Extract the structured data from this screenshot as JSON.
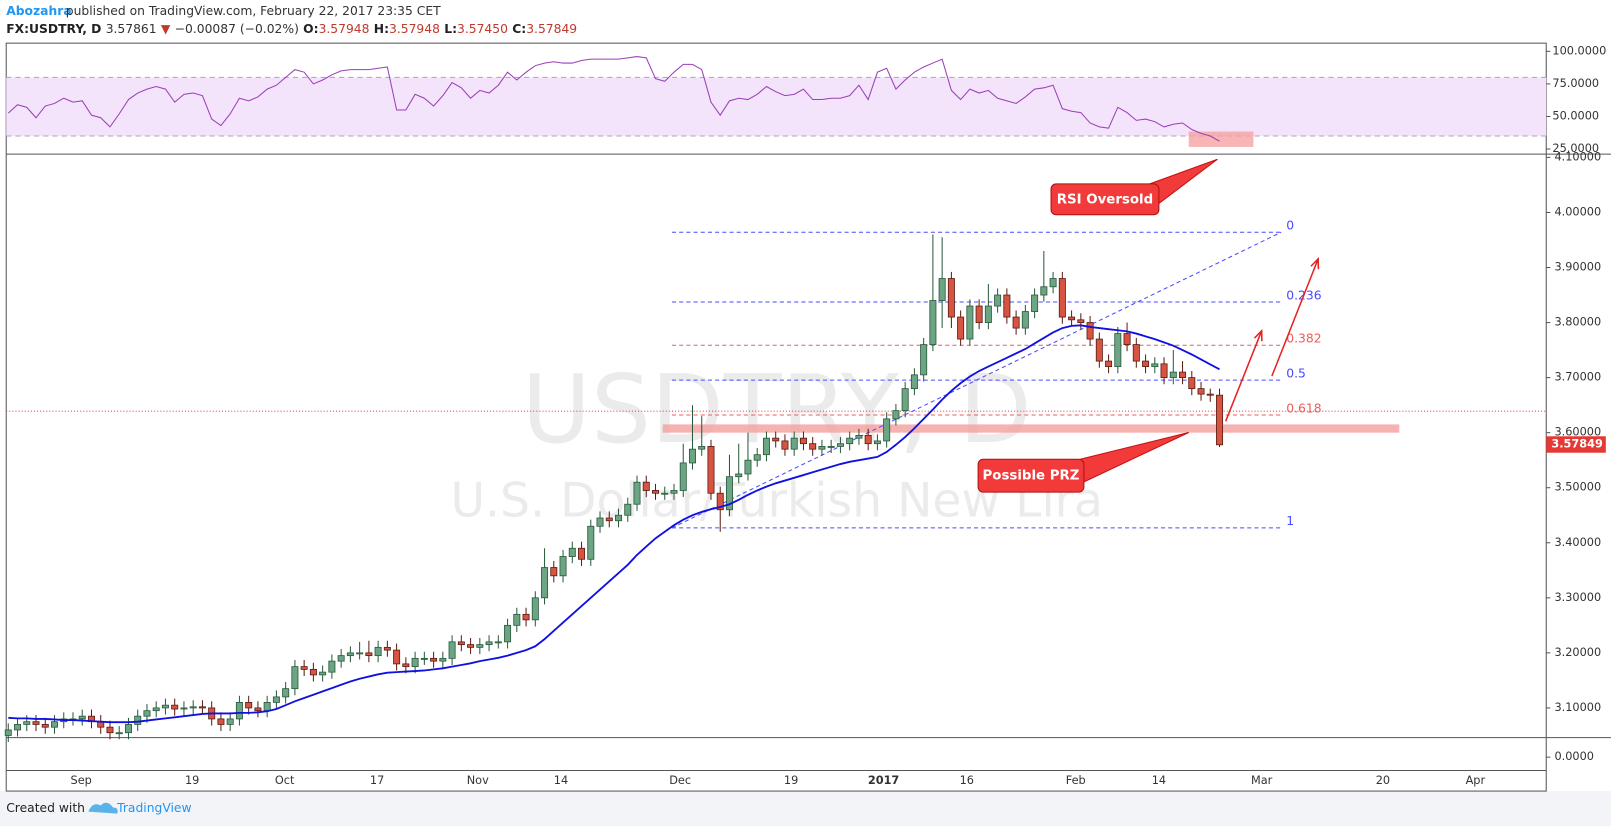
{
  "chart_data": {
    "type": "candlestick",
    "header": {
      "author": "Abozahra",
      "published": "published on TradingView.com, February 22, 2017 23:35 CET",
      "symbol": "FX:USDTRY, D",
      "price": "3.57861",
      "arrow": "▼",
      "change": "−0.00087 (−0.02%)",
      "o_label": "O:",
      "o": "3.57948",
      "h_label": "H:",
      "h": "3.57948",
      "l_label": "L:",
      "l": "3.57450",
      "c_label": "C:",
      "c": "3.57849"
    },
    "watermark": "USDTRY, D",
    "watermark_subtitle": "U.S. Dollar/Turkish New Lira",
    "up_color": "#6ba583",
    "down_color": "#d75442",
    "open": [
      3.05,
      3.06,
      3.07,
      3.075,
      3.07,
      3.065,
      3.075,
      3.08,
      3.08,
      3.085,
      3.075,
      3.065,
      3.055,
      3.055,
      3.07,
      3.085,
      3.095,
      3.1,
      3.105,
      3.098,
      3.1,
      3.102,
      3.1,
      3.08,
      3.07,
      3.08,
      3.11,
      3.1,
      3.095,
      3.11,
      3.12,
      3.135,
      3.175,
      3.17,
      3.16,
      3.165,
      3.185,
      3.195,
      3.2,
      3.2,
      3.195,
      3.21,
      3.205,
      3.18,
      3.175,
      3.19,
      3.19,
      3.185,
      3.19,
      3.22,
      3.215,
      3.21,
      3.215,
      3.22,
      3.22,
      3.25,
      3.27,
      3.26,
      3.3,
      3.355,
      3.34,
      3.375,
      3.39,
      3.37,
      3.43,
      3.445,
      3.44,
      3.45,
      3.47,
      3.51,
      3.495,
      3.49,
      3.49,
      3.495,
      3.545,
      3.57,
      3.575,
      3.49,
      3.46,
      3.52,
      3.525,
      3.55,
      3.56,
      3.59,
      3.585,
      3.57,
      3.59,
      3.58,
      3.57,
      3.575,
      3.575,
      3.58,
      3.59,
      3.595,
      3.58,
      3.585,
      3.625,
      3.64,
      3.68,
      3.705,
      3.76,
      3.84,
      3.88,
      3.81,
      3.77,
      3.83,
      3.8,
      3.83,
      3.85,
      3.81,
      3.79,
      3.82,
      3.85,
      3.865,
      3.88,
      3.81,
      3.805,
      3.8,
      3.77,
      3.73,
      3.72,
      3.78,
      3.76,
      3.73,
      3.72,
      3.725,
      3.7,
      3.71,
      3.7,
      3.68,
      3.67,
      3.668
    ],
    "high": [
      3.072,
      3.082,
      3.087,
      3.087,
      3.082,
      3.087,
      3.092,
      3.092,
      3.097,
      3.097,
      3.087,
      3.077,
      3.067,
      3.082,
      3.097,
      3.107,
      3.112,
      3.117,
      3.117,
      3.112,
      3.114,
      3.114,
      3.112,
      3.092,
      3.092,
      3.122,
      3.122,
      3.112,
      3.122,
      3.132,
      3.147,
      3.187,
      3.187,
      3.182,
      3.177,
      3.197,
      3.207,
      3.212,
      3.22,
      3.222,
      3.222,
      3.222,
      3.217,
      3.192,
      3.202,
      3.202,
      3.202,
      3.202,
      3.232,
      3.232,
      3.227,
      3.227,
      3.232,
      3.232,
      3.262,
      3.282,
      3.282,
      3.312,
      3.39,
      3.367,
      3.387,
      3.402,
      3.402,
      3.442,
      3.457,
      3.457,
      3.462,
      3.482,
      3.522,
      3.522,
      3.507,
      3.502,
      3.507,
      3.58,
      3.65,
      3.63,
      3.587,
      3.502,
      3.56,
      3.58,
      3.6,
      3.572,
      3.602,
      3.602,
      3.597,
      3.602,
      3.602,
      3.592,
      3.587,
      3.587,
      3.592,
      3.602,
      3.607,
      3.607,
      3.597,
      3.637,
      3.652,
      3.692,
      3.717,
      3.772,
      3.96,
      3.955,
      3.892,
      3.822,
      3.842,
      3.842,
      3.87,
      3.862,
      3.862,
      3.822,
      3.832,
      3.862,
      3.93,
      3.892,
      3.892,
      3.822,
      3.817,
      3.812,
      3.782,
      3.742,
      3.792,
      3.8,
      3.772,
      3.742,
      3.737,
      3.737,
      3.75,
      3.73,
      3.712,
      3.692,
      3.68,
      3.68
    ],
    "low": [
      3.038,
      3.048,
      3.058,
      3.058,
      3.053,
      3.053,
      3.063,
      3.068,
      3.068,
      3.063,
      3.053,
      3.043,
      3.043,
      3.043,
      3.058,
      3.073,
      3.083,
      3.088,
      3.086,
      3.086,
      3.088,
      3.088,
      3.068,
      3.058,
      3.058,
      3.068,
      3.088,
      3.083,
      3.083,
      3.098,
      3.108,
      3.123,
      3.158,
      3.148,
      3.148,
      3.153,
      3.173,
      3.183,
      3.188,
      3.183,
      3.183,
      3.193,
      3.168,
      3.163,
      3.163,
      3.178,
      3.173,
      3.173,
      3.178,
      3.203,
      3.198,
      3.198,
      3.203,
      3.208,
      3.208,
      3.238,
      3.248,
      3.248,
      3.288,
      3.328,
      3.328,
      3.363,
      3.358,
      3.358,
      3.418,
      3.428,
      3.428,
      3.438,
      3.458,
      3.483,
      3.478,
      3.478,
      3.478,
      3.483,
      3.533,
      3.558,
      3.478,
      3.42,
      3.448,
      3.508,
      3.513,
      3.538,
      3.548,
      3.573,
      3.558,
      3.558,
      3.568,
      3.558,
      3.558,
      3.563,
      3.563,
      3.568,
      3.578,
      3.568,
      3.568,
      3.573,
      3.613,
      3.628,
      3.668,
      3.693,
      3.748,
      3.79,
      3.79,
      3.758,
      3.758,
      3.788,
      3.788,
      3.818,
      3.798,
      3.778,
      3.778,
      3.808,
      3.838,
      3.853,
      3.798,
      3.793,
      3.788,
      3.758,
      3.718,
      3.708,
      3.708,
      3.748,
      3.718,
      3.708,
      3.708,
      3.688,
      3.688,
      3.688,
      3.668,
      3.658,
      3.656,
      3.574
    ],
    "close": [
      3.06,
      3.07,
      3.075,
      3.07,
      3.065,
      3.075,
      3.08,
      3.08,
      3.085,
      3.075,
      3.065,
      3.055,
      3.055,
      3.07,
      3.085,
      3.095,
      3.1,
      3.105,
      3.098,
      3.1,
      3.102,
      3.1,
      3.08,
      3.07,
      3.08,
      3.11,
      3.1,
      3.095,
      3.11,
      3.12,
      3.135,
      3.175,
      3.17,
      3.16,
      3.165,
      3.185,
      3.195,
      3.2,
      3.2,
      3.195,
      3.21,
      3.205,
      3.18,
      3.175,
      3.19,
      3.19,
      3.185,
      3.19,
      3.22,
      3.215,
      3.21,
      3.215,
      3.22,
      3.22,
      3.25,
      3.27,
      3.26,
      3.3,
      3.355,
      3.34,
      3.375,
      3.39,
      3.37,
      3.43,
      3.445,
      3.44,
      3.45,
      3.47,
      3.51,
      3.495,
      3.49,
      3.49,
      3.495,
      3.545,
      3.57,
      3.575,
      3.49,
      3.46,
      3.52,
      3.525,
      3.55,
      3.56,
      3.59,
      3.585,
      3.57,
      3.59,
      3.58,
      3.57,
      3.575,
      3.575,
      3.58,
      3.59,
      3.595,
      3.58,
      3.585,
      3.625,
      3.64,
      3.68,
      3.705,
      3.76,
      3.84,
      3.88,
      3.81,
      3.77,
      3.83,
      3.8,
      3.83,
      3.85,
      3.81,
      3.79,
      3.82,
      3.85,
      3.865,
      3.88,
      3.81,
      3.805,
      3.8,
      3.77,
      3.73,
      3.72,
      3.78,
      3.76,
      3.73,
      3.72,
      3.725,
      3.7,
      3.71,
      3.7,
      3.68,
      3.67,
      3.668,
      3.578
    ],
    "ma": {
      "color": "#1010e0",
      "values": [
        3.082,
        3.081,
        3.081,
        3.08,
        3.08,
        3.079,
        3.078,
        3.078,
        3.077,
        3.076,
        3.075,
        3.074,
        3.074,
        3.074,
        3.075,
        3.077,
        3.079,
        3.081,
        3.083,
        3.085,
        3.087,
        3.089,
        3.09,
        3.09,
        3.09,
        3.091,
        3.091,
        3.092,
        3.094,
        3.098,
        3.105,
        3.112,
        3.118,
        3.124,
        3.13,
        3.136,
        3.142,
        3.148,
        3.153,
        3.157,
        3.161,
        3.164,
        3.165,
        3.166,
        3.167,
        3.168,
        3.17,
        3.172,
        3.175,
        3.178,
        3.181,
        3.185,
        3.188,
        3.191,
        3.195,
        3.2,
        3.205,
        3.212,
        3.225,
        3.24,
        3.255,
        3.27,
        3.285,
        3.3,
        3.315,
        3.33,
        3.345,
        3.36,
        3.378,
        3.393,
        3.408,
        3.42,
        3.432,
        3.442,
        3.45,
        3.456,
        3.461,
        3.465,
        3.47,
        3.478,
        3.487,
        3.495,
        3.502,
        3.508,
        3.513,
        3.518,
        3.523,
        3.528,
        3.533,
        3.538,
        3.543,
        3.547,
        3.55,
        3.553,
        3.556,
        3.565,
        3.578,
        3.592,
        3.608,
        3.625,
        3.642,
        3.66,
        3.676,
        3.69,
        3.702,
        3.712,
        3.72,
        3.728,
        3.736,
        3.744,
        3.752,
        3.762,
        3.772,
        3.782,
        3.79,
        3.794,
        3.795,
        3.792,
        3.79,
        3.788,
        3.786,
        3.784,
        3.78,
        3.775,
        3.77,
        3.764,
        3.758,
        3.75,
        3.742,
        3.733,
        3.724,
        3.715
      ]
    },
    "ylim": [
      3.046,
      4.106
    ],
    "yticks": [
      {
        "value": 4.1,
        "label": "4.10000"
      },
      {
        "value": 4.0,
        "label": "4.00000"
      },
      {
        "value": 3.9,
        "label": "3.90000"
      },
      {
        "value": 3.8,
        "label": "3.80000"
      },
      {
        "value": 3.7,
        "label": "3.70000"
      },
      {
        "value": 3.6,
        "label": "3.60000"
      },
      {
        "value": 3.5,
        "label": "3.50000"
      },
      {
        "value": 3.4,
        "label": "3.40000"
      },
      {
        "value": 3.3,
        "label": "3.30000"
      },
      {
        "value": 3.2,
        "label": "3.20000"
      },
      {
        "value": 3.1,
        "label": "3.10000"
      }
    ],
    "lower_pane_ticks": [
      {
        "value": 0,
        "label": "0.0000"
      }
    ],
    "last_price": 3.57849,
    "price_line": 3.639,
    "prz": [
      3.6,
      3.615
    ],
    "rsi": {
      "color": "#9b3fb5",
      "band": [
        35,
        80
      ],
      "zone": [
        26.6,
        38.4
      ],
      "ylim": [
        21.1,
        106.3
      ],
      "yticks": [
        {
          "value": 100,
          "label": "100.0000"
        },
        {
          "value": 75,
          "label": "75.0000"
        },
        {
          "value": 50,
          "label": "50.0000"
        },
        {
          "value": 25,
          "label": "25.0000"
        }
      ],
      "values": [
        52.6,
        59,
        57,
        49,
        58,
        60,
        64,
        61,
        62,
        51,
        49,
        42,
        52,
        63,
        68,
        71,
        73,
        71,
        61,
        67,
        68,
        66,
        48,
        43,
        52,
        64,
        62,
        65,
        71,
        74,
        80,
        86,
        84,
        75,
        78,
        82,
        85,
        86,
        86,
        86,
        87,
        88,
        55,
        55,
        67,
        64,
        58,
        66,
        76,
        72,
        64,
        70,
        68,
        74,
        84,
        78,
        84,
        89,
        91,
        92,
        91,
        91,
        93,
        94,
        94,
        94,
        94,
        95,
        96,
        95,
        79,
        77,
        84,
        90,
        90,
        86,
        61,
        51,
        62,
        64,
        63,
        67,
        73,
        69,
        66,
        67,
        71,
        63,
        63,
        64,
        64,
        66,
        74,
        63,
        84,
        87,
        71,
        78,
        84,
        88,
        91,
        94,
        70,
        63,
        71,
        68,
        70,
        64,
        62,
        60,
        65,
        71,
        72,
        74,
        56,
        54,
        53,
        45,
        42,
        41,
        57,
        53,
        47,
        48,
        46,
        42,
        44,
        45,
        40,
        37,
        35,
        31
      ]
    },
    "fib": {
      "high": 3.964,
      "low": 3.427,
      "levels": [
        0,
        0.236,
        0.382,
        0.5,
        0.618,
        1
      ],
      "colors": [
        "#4a4aff",
        "#4a4aff",
        "#f05a5a",
        "#4a4aff",
        "#f05a5a",
        "#4a4aff"
      ]
    },
    "annotations": [
      "RSI Oversold",
      "Possible PRZ"
    ],
    "xtick_labels": [
      "Sep",
      "19",
      "Oct",
      "17",
      "Nov",
      "14",
      "Dec",
      "19",
      "2017",
      "16",
      "Feb",
      "14",
      "Mar",
      "20",
      "Apr"
    ],
    "footer": {
      "created": "Created with",
      "brand": "TradingView"
    }
  }
}
